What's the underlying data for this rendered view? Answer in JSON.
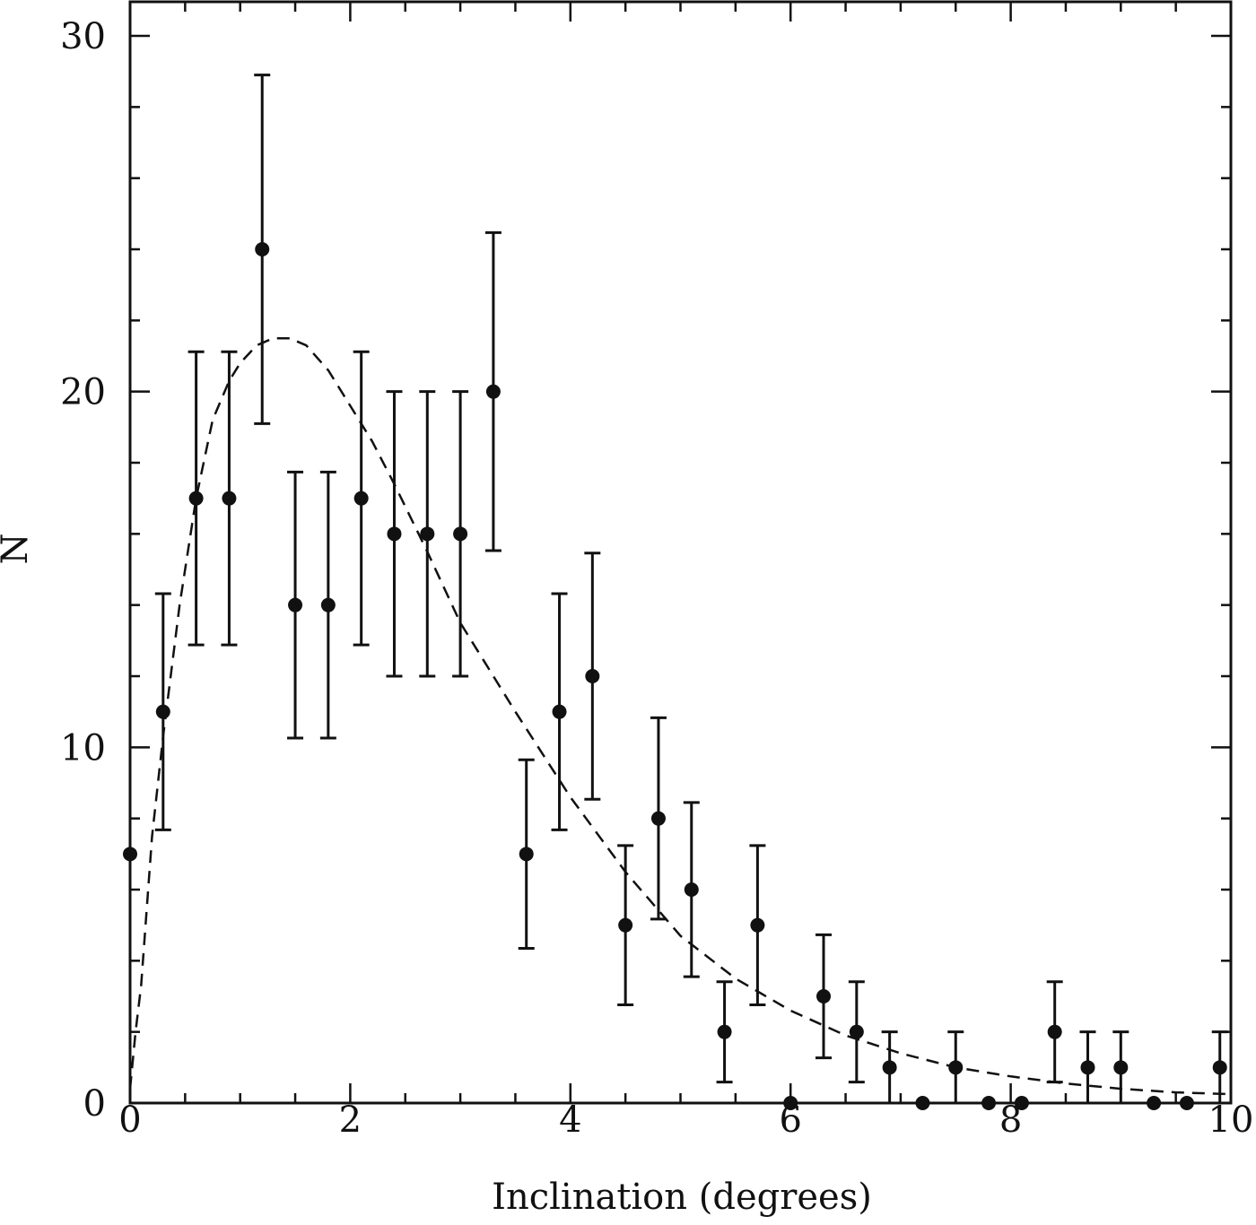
{
  "chart_data": {
    "type": "scatter",
    "x_label": "Inclination (degrees)",
    "y_label": "N",
    "xlim": [
      0,
      10
    ],
    "ylim": [
      0,
      30
    ],
    "xticks": [
      0,
      2,
      4,
      6,
      8,
      10
    ],
    "yticks": [
      0,
      10,
      20,
      30
    ],
    "xminorticks": [
      0.5,
      1,
      1.5,
      2.5,
      3,
      3.5,
      4.5,
      5,
      5.5,
      6.5,
      7,
      7.5,
      8.5,
      9,
      9.5
    ],
    "yminorticks": [
      2,
      4,
      6,
      8,
      12,
      14,
      16,
      18,
      22,
      24,
      26,
      28
    ],
    "series": [
      {
        "type": "scatter",
        "color": "#111111",
        "x": [
          0,
          0.3,
          0.6,
          0.9,
          1.2,
          1.5,
          1.8,
          2.1,
          2.4,
          2.7,
          3.0,
          3.3,
          3.6,
          3.9,
          4.2,
          4.5,
          4.8,
          5.1,
          5.4,
          5.7,
          6.0,
          6.3,
          6.6,
          6.9,
          7.2,
          7.5,
          7.8,
          8.1,
          8.4,
          8.7,
          9.0,
          9.3,
          9.6,
          9.9
        ],
        "values": [
          7,
          11,
          17,
          17,
          24,
          14,
          14,
          17,
          16,
          16,
          16,
          20,
          7,
          11,
          12,
          5,
          8,
          6,
          2,
          5,
          0,
          3,
          2,
          1,
          0,
          1,
          0,
          0,
          2,
          1,
          1,
          0,
          0,
          1
        ],
        "errors": [
          null,
          3.32,
          4.12,
          4.12,
          4.9,
          3.74,
          3.74,
          4.12,
          4,
          4,
          4,
          4.47,
          2.65,
          3.32,
          3.46,
          2.24,
          2.83,
          2.45,
          1.41,
          2.24,
          null,
          1.73,
          1.41,
          1,
          null,
          1,
          null,
          null,
          1.41,
          1,
          1,
          null,
          null,
          1
        ]
      },
      {
        "type": "line",
        "dashed": true,
        "color": "#111111",
        "x": [
          0,
          0.05,
          0.1,
          0.2,
          0.3,
          0.45,
          0.6,
          0.75,
          0.9,
          1.0,
          1.15,
          1.3,
          1.45,
          1.6,
          1.8,
          2.0,
          2.2,
          2.4,
          2.7,
          3.0,
          3.5,
          4.0,
          4.5,
          5.0,
          5.5,
          6.0,
          6.5,
          7.0,
          7.5,
          8.0,
          8.5,
          9.0,
          9.5,
          10
        ],
        "values": [
          0.4,
          2,
          3.3,
          7.5,
          10.3,
          14,
          17,
          19.2,
          20.3,
          20.8,
          21.3,
          21.5,
          21.5,
          21.3,
          20.6,
          19.6,
          18.6,
          17.4,
          15.5,
          13.5,
          11,
          8.6,
          6.5,
          4.7,
          3.5,
          2.6,
          1.9,
          1.4,
          1.0,
          0.75,
          0.55,
          0.4,
          0.3,
          0.25
        ]
      }
    ]
  }
}
